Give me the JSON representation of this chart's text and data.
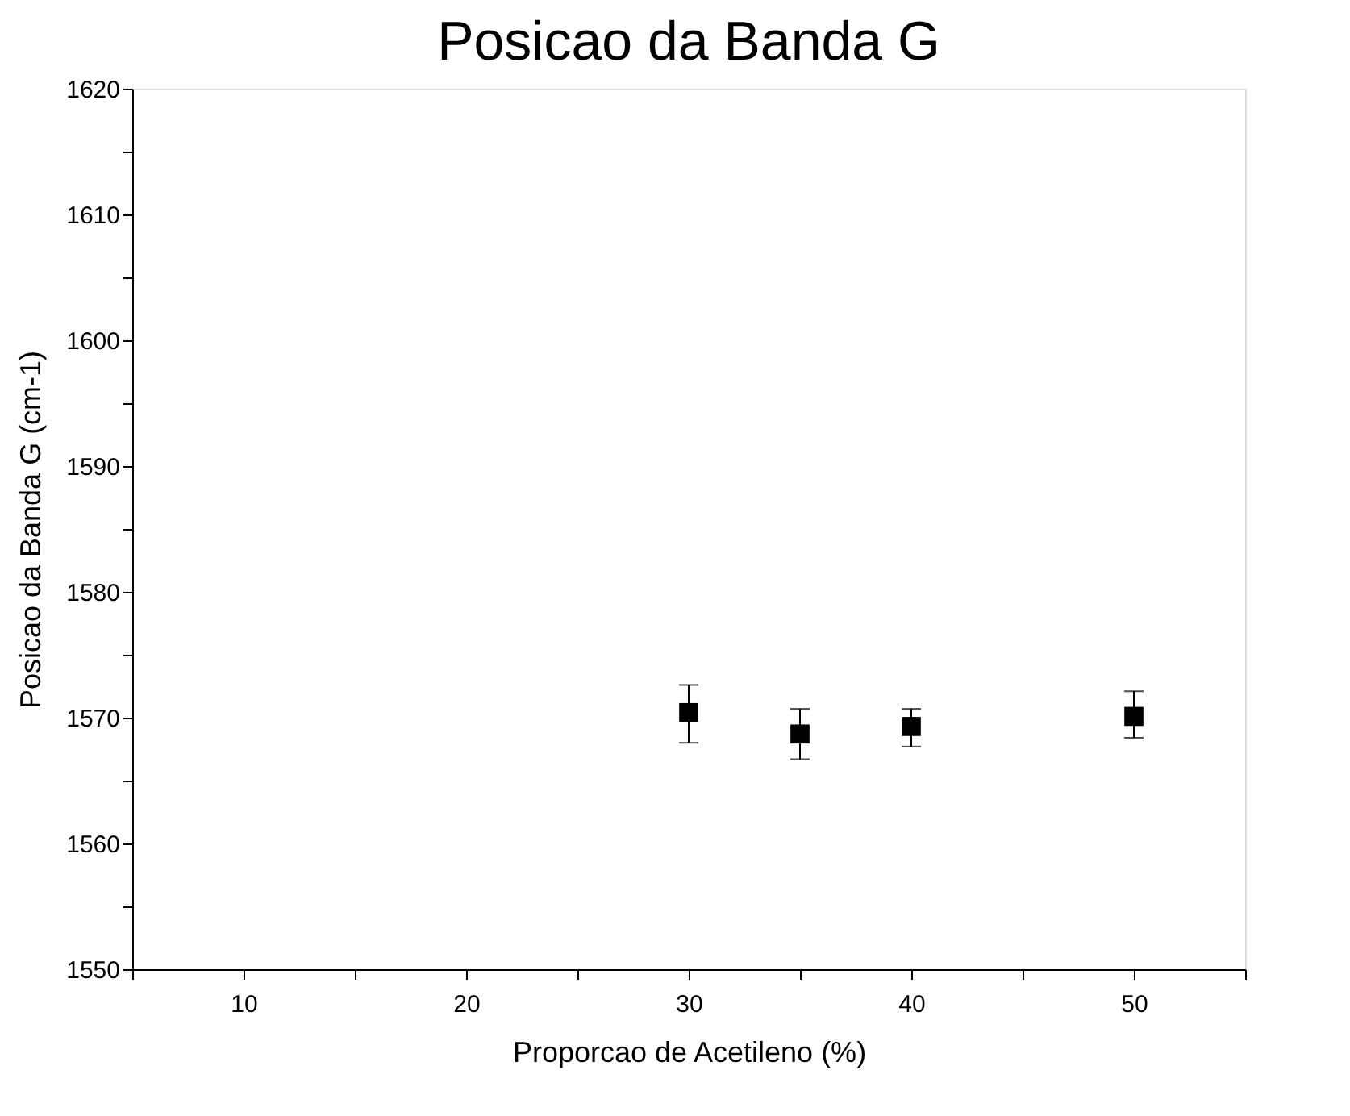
{
  "chart_data": {
    "type": "scatter",
    "title": "Posicao da Banda G",
    "xlabel": "Proporcao de Acetileno (%)",
    "ylabel": "Posicao da Banda G (cm-1)",
    "x": [
      30,
      35,
      40,
      50
    ],
    "series": [
      {
        "color": "#000000",
        "values": [
          1570.4,
          1568.7,
          1569.3,
          1570.1
        ],
        "errors": [
          [
            1568.0,
            1572.6
          ],
          [
            1566.7,
            1570.7
          ],
          [
            1567.7,
            1570.7
          ],
          [
            1568.4,
            1572.1
          ]
        ]
      }
    ],
    "marker": "square",
    "grid": false,
    "xlim": [
      5,
      55
    ],
    "xticks": [
      {
        "value": 5,
        "label": null
      },
      10,
      {
        "value": 15,
        "label": null
      },
      20,
      {
        "value": 25,
        "label": null
      },
      30,
      {
        "value": 35,
        "label": null
      },
      40,
      {
        "value": 45,
        "label": null
      },
      50,
      {
        "value": 55,
        "label": null
      }
    ],
    "ylim": [
      1550,
      1620
    ],
    "yticks": [
      1550,
      {
        "value": 1555,
        "label": null
      },
      1560,
      {
        "value": 1565,
        "label": null
      },
      1570,
      {
        "value": 1575,
        "label": null
      },
      1580,
      {
        "value": 1585,
        "label": null
      },
      1590,
      {
        "value": 1595,
        "label": null
      },
      1600,
      {
        "value": 1605,
        "label": null
      },
      1610,
      {
        "value": 1615,
        "label": null
      },
      1620
    ]
  }
}
